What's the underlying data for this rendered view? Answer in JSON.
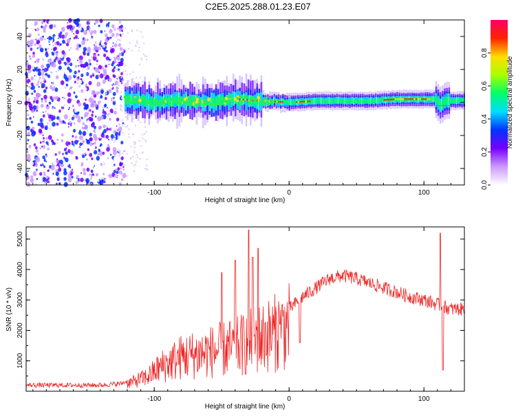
{
  "title": "C2E5.2025.288.01.23.E07",
  "chart_data": [
    {
      "type": "heatmap",
      "name": "spectrogram",
      "xlabel": "Height of straight line (km)",
      "ylabel": "Frequency (Hz)",
      "xlim": [
        -195,
        130
      ],
      "ylim": [
        -50,
        50
      ],
      "xticks": [
        -100,
        0,
        100
      ],
      "xtick_labels": [
        "-100",
        "0",
        "100"
      ],
      "yticks": [
        -40,
        -20,
        0,
        20,
        40
      ],
      "ytick_labels": [
        "-40",
        "-20",
        "0",
        "20",
        "40"
      ],
      "colorbar": {
        "label": "Normalized spectral amplitude",
        "range": [
          0,
          1
        ],
        "ticks": [
          0.0,
          0.2,
          0.4,
          0.6,
          0.8
        ],
        "tick_labels": [
          "0.0",
          "0.2",
          "0.4",
          "0.6",
          "0.8"
        ],
        "colors": [
          "#ffffff",
          "#cc99ff",
          "#7700ff",
          "#0033ff",
          "#00ddff",
          "#00ff66",
          "#aaff00",
          "#ffdd00",
          "#ff2200",
          "#ff0066"
        ]
      },
      "ridge": {
        "description_points": [
          [
            -122,
            2
          ],
          [
            -110,
            1
          ],
          [
            -100,
            0
          ],
          [
            -80,
            1
          ],
          [
            -60,
            0
          ],
          [
            -40,
            2
          ],
          [
            -20,
            1
          ],
          [
            0,
            0
          ],
          [
            20,
            1
          ],
          [
            40,
            1
          ],
          [
            60,
            1
          ],
          [
            80,
            2
          ],
          [
            100,
            2
          ],
          [
            108,
            2
          ],
          [
            112,
            -2
          ],
          [
            115,
            1
          ],
          [
            130,
            1
          ]
        ]
      }
    },
    {
      "type": "line",
      "name": "snr",
      "xlabel": "Height of straight line (km)",
      "ylabel": "SNR (10 * v/v)",
      "xlim": [
        -195,
        130
      ],
      "ylim": [
        0,
        5400
      ],
      "xticks": [
        -100,
        0,
        100
      ],
      "xtick_labels": [
        "-100",
        "0",
        "100"
      ],
      "yticks": [
        1000,
        2000,
        3000,
        4000,
        5000
      ],
      "ytick_labels": [
        "1000",
        "2000",
        "3000",
        "4000",
        "5000"
      ],
      "color": "#ee2222",
      "envelope": [
        [
          -195,
          200
        ],
        [
          -140,
          200
        ],
        [
          -125,
          250
        ],
        [
          -115,
          400
        ],
        [
          -105,
          600
        ],
        [
          -95,
          1000
        ],
        [
          -80,
          1400
        ],
        [
          -60,
          1600
        ],
        [
          -40,
          1800
        ],
        [
          -30,
          2000
        ],
        [
          -20,
          2200
        ],
        [
          -10,
          2400
        ],
        [
          0,
          2700
        ],
        [
          10,
          3100
        ],
        [
          20,
          3400
        ],
        [
          30,
          3700
        ],
        [
          40,
          3800
        ],
        [
          50,
          3700
        ],
        [
          60,
          3550
        ],
        [
          70,
          3400
        ],
        [
          80,
          3250
        ],
        [
          90,
          3100
        ],
        [
          100,
          3000
        ],
        [
          110,
          2850
        ],
        [
          120,
          2700
        ],
        [
          130,
          2700
        ]
      ],
      "spikes": [
        [
          -50,
          3900
        ],
        [
          -40,
          4300
        ],
        [
          -30,
          5300
        ],
        [
          -27,
          4400
        ],
        [
          -23,
          4700
        ],
        [
          -7,
          2200
        ],
        [
          8,
          1600
        ],
        [
          112,
          5200
        ],
        [
          114,
          700
        ]
      ]
    }
  ]
}
